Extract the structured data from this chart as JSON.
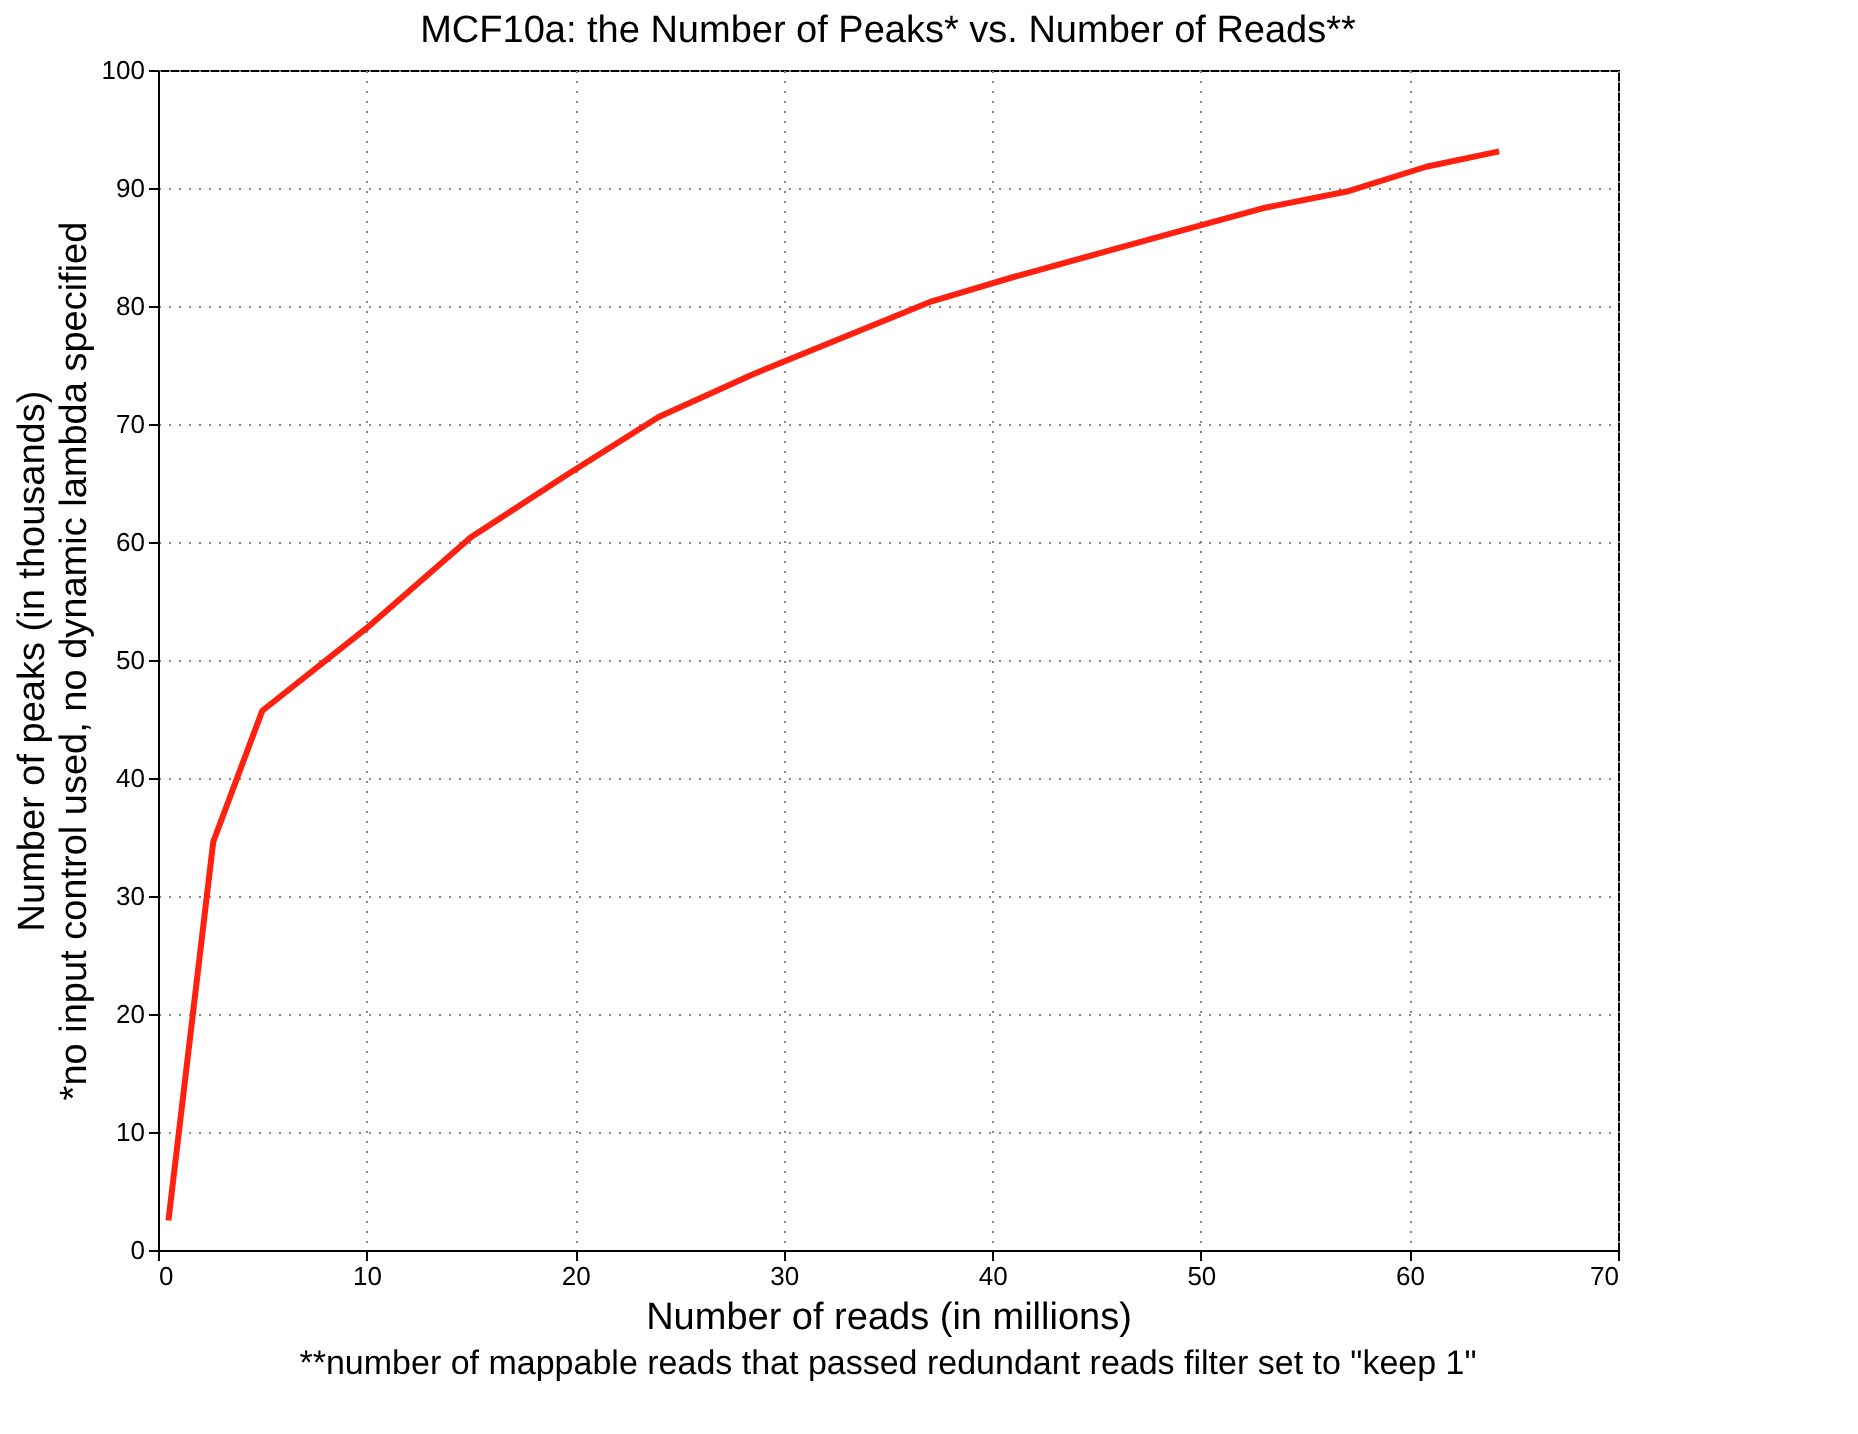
{
  "chart_data": {
    "type": "line",
    "title": "MCF10a: the Number of Peaks* vs. Number of Reads**",
    "xlabel": "Number of reads (in millions)",
    "ylabel": "Number of peaks (in thousands)\n*no input control used, no dynamic lambda specified",
    "annotations": [
      "**number of mappable reads that passed redundant reads filter set to \"keep 1\""
    ],
    "series": [
      {
        "color": "#ff2010",
        "x": [
          0.5,
          2.65,
          5.0,
          10.0,
          15.0,
          19.7,
          24.0,
          28.5,
          37.1,
          41.1,
          49.5,
          53.0,
          57.0,
          60.8,
          64.3
        ],
        "values": [
          2.5,
          34.6,
          45.7,
          52.7,
          60.4,
          65.8,
          70.6,
          74.2,
          80.4,
          82.5,
          86.6,
          88.3,
          89.7,
          91.8,
          93.1
        ]
      }
    ],
    "xlim": [
      0,
      70
    ],
    "xticks": [
      0,
      10,
      20,
      30,
      40,
      50,
      60,
      70
    ],
    "ylim": [
      0,
      100
    ],
    "yticks": [
      0,
      10,
      20,
      30,
      40,
      50,
      60,
      70,
      80,
      90,
      100
    ],
    "grid": true,
    "marker": "none",
    "line_style": "solid"
  }
}
